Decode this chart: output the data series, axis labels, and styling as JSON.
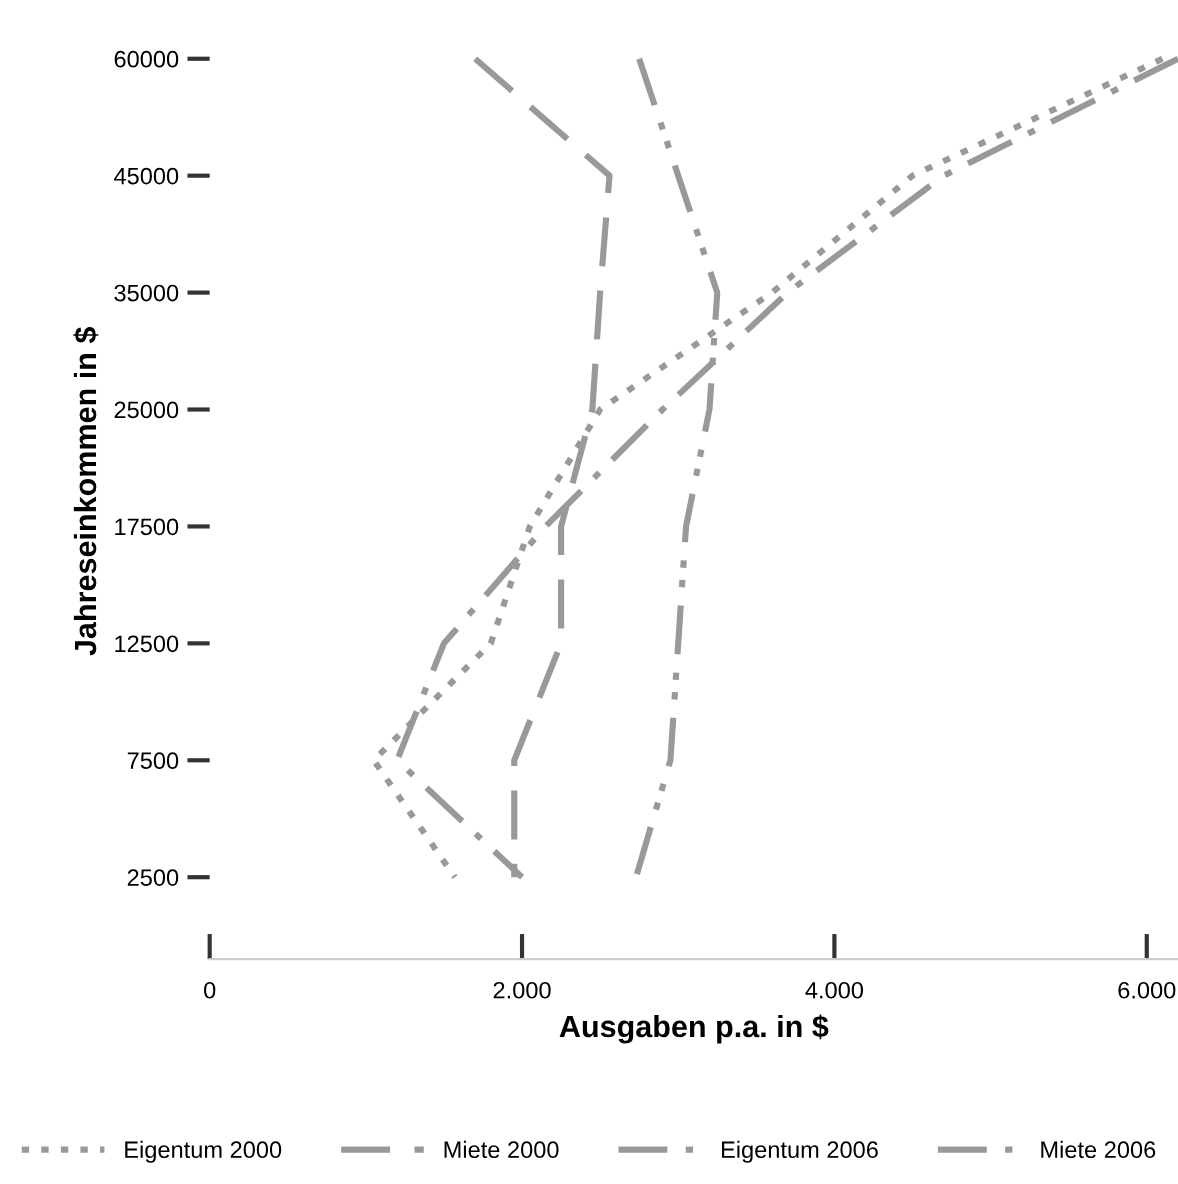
{
  "chart_data": {
    "type": "line",
    "orientation": "horizontal",
    "xlabel": "Ausgaben p.a. in $",
    "ylabel": "Jahreseinkommen in $",
    "categories": [
      "60000",
      "45000",
      "35000",
      "25000",
      "17500",
      "12500",
      "7500",
      "2500"
    ],
    "xlim": [
      0,
      6200
    ],
    "xticks": [
      0,
      {
        "value": 2000,
        "label": "2.000"
      },
      {
        "value": 4000,
        "label": "4.000"
      },
      {
        "value": 6000,
        "label": "6.000"
      }
    ],
    "grid": false,
    "legend": "bottom",
    "marker": "none",
    "series": [
      {
        "name": "Eigentum 2000",
        "color": "#999999",
        "line_style": "dotted",
        "values": [
          6100,
          4500,
          3600,
          2500,
          2050,
          1800,
          1050,
          1570
        ]
      },
      {
        "name": "Miete 2000",
        "color": "#999999",
        "line_style": "dashed",
        "values": [
          1700,
          2560,
          2500,
          2450,
          2250,
          2250,
          1950,
          1950
        ]
      },
      {
        "name": "Eigentum 2006",
        "color": "#999999",
        "line_style": "dashdot",
        "values": [
          6200,
          4700,
          3700,
          2900,
          2150,
          1500,
          1200,
          2000
        ]
      },
      {
        "name": "Miete 2006",
        "color": "#999999",
        "line_style": "dashdotdot",
        "values": [
          2750,
          3000,
          3250,
          3200,
          3050,
          3000,
          2950,
          2730
        ]
      }
    ]
  }
}
